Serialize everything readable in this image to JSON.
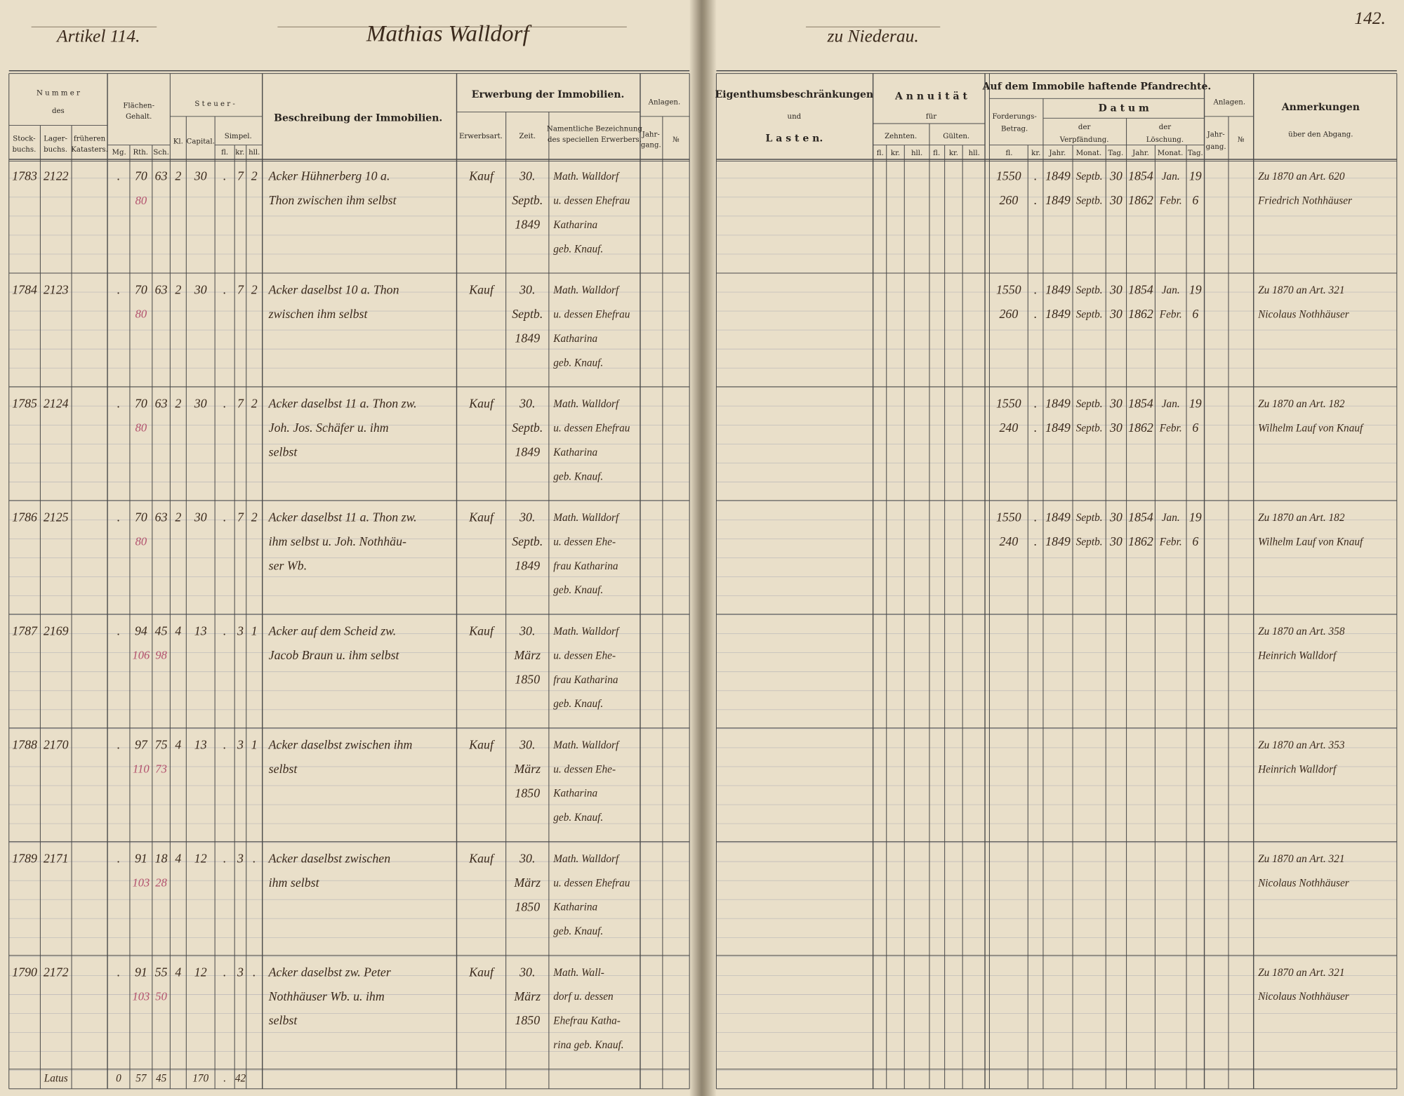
{
  "left_page": {
    "header": {
      "article": "Artikel 114.",
      "owner": "Mathias Walldorf"
    },
    "header_labels": {
      "nummer": "N u m m e r",
      "des": "des",
      "stock": [
        "Stock-",
        "buchs."
      ],
      "lager": [
        "Lager-",
        "buchs."
      ],
      "kat": [
        "früheren",
        "Katasters."
      ],
      "flaechen": [
        "Flächen-",
        "Gehalt."
      ],
      "mg": "Mg.",
      "rth": "Rth.",
      "sch": "Sch.",
      "steuer": "S t e u e r -",
      "kl": "Kl.",
      "capital": "Capital.",
      "simpel": "Simpel.",
      "sfl": "fl.",
      "skr": "kr.",
      "shll": "hll.",
      "beschreibung": "Beschreibung der Immobilien.",
      "erwerbung": "Erwerbung der Immobilien.",
      "erwerbsart": "Erwerbsart.",
      "zeit": "Zeit.",
      "namentliche": [
        "Namentliche Bezeichnung",
        "des speciellen Erwerbers."
      ],
      "anlagen": "Anlagen.",
      "jahrgang": [
        "Jahr-",
        "gang."
      ],
      "no": "№"
    },
    "rows": [
      {
        "cells": {
          "stock": "1783",
          "lager": "2122",
          "mg": ".",
          "rth": "70",
          "sch": "63",
          "kl": "2",
          "cap": "30",
          "sfl": ".",
          "skr": "7",
          "shll": "2",
          "art": "Kauf"
        },
        "red": {
          "rth": "80"
        },
        "desc": [
          "Acker Hühnerberg 10 a.",
          "Thon zwischen ihm selbst"
        ],
        "zeit": [
          "30.",
          "Septb.",
          "1849"
        ],
        "name": [
          "Math. Walldorf",
          "u. dessen Ehefrau",
          "Katharina",
          "geb. Knauf."
        ]
      },
      {
        "cells": {
          "stock": "1784",
          "lager": "2123",
          "mg": ".",
          "rth": "70",
          "sch": "63",
          "kl": "2",
          "cap": "30",
          "sfl": ".",
          "skr": "7",
          "shll": "2",
          "art": "Kauf"
        },
        "red": {
          "rth": "80"
        },
        "desc": [
          "Acker daselbst 10 a. Thon",
          "zwischen ihm selbst"
        ],
        "zeit": [
          "30.",
          "Septb.",
          "1849"
        ],
        "name": [
          "Math. Walldorf",
          "u. dessen Ehefrau",
          "Katharina",
          "geb. Knauf."
        ]
      },
      {
        "cells": {
          "stock": "1785",
          "lager": "2124",
          "mg": ".",
          "rth": "70",
          "sch": "63",
          "kl": "2",
          "cap": "30",
          "sfl": ".",
          "skr": "7",
          "shll": "2",
          "art": "Kauf"
        },
        "red": {
          "rth": "80"
        },
        "desc": [
          "Acker daselbst 11 a. Thon zw.",
          "Joh. Jos. Schäfer u. ihm",
          "selbst"
        ],
        "zeit": [
          "30.",
          "Septb.",
          "1849"
        ],
        "name": [
          "Math. Walldorf",
          "u. dessen Ehefrau",
          "Katharina",
          "geb. Knauf."
        ]
      },
      {
        "cells": {
          "stock": "1786",
          "lager": "2125",
          "mg": ".",
          "rth": "70",
          "sch": "63",
          "kl": "2",
          "cap": "30",
          "sfl": ".",
          "skr": "7",
          "shll": "2",
          "art": "Kauf"
        },
        "red": {
          "rth": "80"
        },
        "desc": [
          "Acker daselbst 11 a. Thon zw.",
          "ihm selbst u. Joh. Nothhäu-",
          "ser Wb."
        ],
        "zeit": [
          "30.",
          "Septb.",
          "1849"
        ],
        "name": [
          "Math. Walldorf",
          "u. dessen Ehe-",
          "frau Katharina",
          "geb. Knauf."
        ]
      },
      {
        "cells": {
          "stock": "1787",
          "lager": "2169",
          "mg": ".",
          "rth": "94",
          "sch": "45",
          "kl": "4",
          "cap": "13",
          "sfl": ".",
          "skr": "3",
          "shll": "1",
          "art": "Kauf"
        },
        "red": {
          "rth": "106",
          "sch": "98"
        },
        "desc": [
          "Acker auf dem Scheid zw.",
          "Jacob Braun u. ihm selbst"
        ],
        "zeit": [
          "30.",
          "März",
          "1850"
        ],
        "name": [
          "Math. Walldorf",
          "u. dessen Ehe-",
          "frau Katharina",
          "geb. Knauf."
        ]
      },
      {
        "cells": {
          "stock": "1788",
          "lager": "2170",
          "mg": ".",
          "rth": "97",
          "sch": "75",
          "kl": "4",
          "cap": "13",
          "sfl": ".",
          "skr": "3",
          "shll": "1",
          "art": "Kauf"
        },
        "red": {
          "rth": "110",
          "sch": "73"
        },
        "desc": [
          "Acker daselbst zwischen ihm",
          "selbst"
        ],
        "zeit": [
          "30.",
          "März",
          "1850"
        ],
        "name": [
          "Math. Walldorf",
          "u. dessen Ehe-",
          "Katharina",
          "geb. Knauf."
        ]
      },
      {
        "cells": {
          "stock": "1789",
          "lager": "2171",
          "mg": ".",
          "rth": "91",
          "sch": "18",
          "kl": "4",
          "cap": "12",
          "sfl": ".",
          "skr": "3",
          "shll": ".",
          "art": "Kauf"
        },
        "red": {
          "rth": "103",
          "sch": "28"
        },
        "desc": [
          "Acker daselbst zwischen",
          "ihm selbst"
        ],
        "zeit": [
          "30.",
          "März",
          "1850"
        ],
        "name": [
          "Math. Walldorf",
          "u. dessen Ehefrau",
          "Katharina",
          "geb. Knauf."
        ]
      },
      {
        "cells": {
          "stock": "1790",
          "lager": "2172",
          "mg": ".",
          "rth": "91",
          "sch": "55",
          "kl": "4",
          "cap": "12",
          "sfl": ".",
          "skr": "3",
          "shll": ".",
          "art": "Kauf"
        },
        "red": {
          "rth": "103",
          "sch": "50"
        },
        "desc": [
          "Acker daselbst zw. Peter",
          "Nothhäuser Wb. u. ihm",
          "selbst"
        ],
        "zeit": [
          "30.",
          "März",
          "1850"
        ],
        "name": [
          "Math. Wall-",
          "dorf u. dessen",
          "Ehefrau Katha-",
          "rina geb. Knauf."
        ]
      }
    ],
    "total": {
      "cells": {
        "lager": "Latus",
        "mg": "0",
        "rth": "57",
        "sch": "45",
        "cap": "170",
        "sfl": ".",
        "skr": "42"
      }
    }
  },
  "right_page": {
    "header": {
      "place": "zu Niederau.",
      "page": "142."
    },
    "header_labels": {
      "eig": "Eigenthumsbeschränkungen",
      "und": "und",
      "lasten": "L a s t e n.",
      "annuitaet": "A n n u i t ä t",
      "fuer": "für",
      "zehnten": "Zehnten.",
      "guelten": "Gülten.",
      "zfl": "fl.",
      "zkr": "kr.",
      "zhll": "hll.",
      "gfl": "fl.",
      "gkr": "kr.",
      "ghll": "hll.",
      "pfandrechte": "Auf dem Immobile haftende Pfandrechte.",
      "forderung": [
        "Forderungs-",
        "Betrag."
      ],
      "ffl": "fl.",
      "fkr": "kr.",
      "datum": "D a t u m",
      "verpf": [
        "der",
        "Verpfändung."
      ],
      "vj": "Jahr.",
      "vm": "Monat.",
      "vt": "Tag.",
      "loesch": [
        "der",
        "Löschung."
      ],
      "lj": "Jahr.",
      "lm": "Monat.",
      "lt": "Tag.",
      "anlagen": "Anlagen.",
      "jahrgang": [
        "Jahr-",
        "gang."
      ],
      "no": "№",
      "anmerkungen": "Anmerkungen",
      "abgang": "über den Abgang."
    },
    "rows": [
      {
        "pfand": [
          {
            "fl": "1550",
            "kr": ".",
            "vj": "1849",
            "vm": "Septb.",
            "vt": "30",
            "lj": "1854",
            "lm": "Jan.",
            "lt": "19"
          },
          {
            "fl": "260",
            "kr": ".",
            "vj": "1849",
            "vm": "Septb.",
            "vt": "30",
            "lj": "1862",
            "lm": "Febr.",
            "lt": "6"
          }
        ],
        "note": [
          "Zu 1870 an Art. 620",
          "Friedrich Nothhäuser"
        ]
      },
      {
        "pfand": [
          {
            "fl": "1550",
            "kr": ".",
            "vj": "1849",
            "vm": "Septb.",
            "vt": "30",
            "lj": "1854",
            "lm": "Jan.",
            "lt": "19"
          },
          {
            "fl": "260",
            "kr": ".",
            "vj": "1849",
            "vm": "Septb.",
            "vt": "30",
            "lj": "1862",
            "lm": "Febr.",
            "lt": "6"
          }
        ],
        "note": [
          "Zu 1870 an Art. 321",
          "Nicolaus Nothhäuser"
        ]
      },
      {
        "pfand": [
          {
            "fl": "1550",
            "kr": ".",
            "vj": "1849",
            "vm": "Septb.",
            "vt": "30",
            "lj": "1854",
            "lm": "Jan.",
            "lt": "19"
          },
          {
            "fl": "240",
            "kr": ".",
            "vj": "1849",
            "vm": "Septb.",
            "vt": "30",
            "lj": "1862",
            "lm": "Febr.",
            "lt": "6"
          }
        ],
        "note": [
          "Zu 1870 an Art. 182",
          "Wilhelm Lauf von Knauf"
        ]
      },
      {
        "pfand": [
          {
            "fl": "1550",
            "kr": ".",
            "vj": "1849",
            "vm": "Septb.",
            "vt": "30",
            "lj": "1854",
            "lm": "Jan.",
            "lt": "19"
          },
          {
            "fl": "240",
            "kr": ".",
            "vj": "1849",
            "vm": "Septb.",
            "vt": "30",
            "lj": "1862",
            "lm": "Febr.",
            "lt": "6"
          }
        ],
        "note": [
          "Zu 1870 an Art. 182",
          "Wilhelm Lauf von Knauf"
        ]
      },
      {
        "note": [
          "Zu 1870 an Art. 358",
          "Heinrich Walldorf"
        ]
      },
      {
        "note": [
          "Zu 1870 an Art. 353",
          "Heinrich Walldorf"
        ]
      },
      {
        "note": [
          "Zu 1870 an Art. 321",
          "Nicolaus Nothhäuser"
        ]
      },
      {
        "note": [
          "Zu 1870 an Art. 321",
          "Nicolaus Nothhäuser"
        ]
      }
    ]
  }
}
